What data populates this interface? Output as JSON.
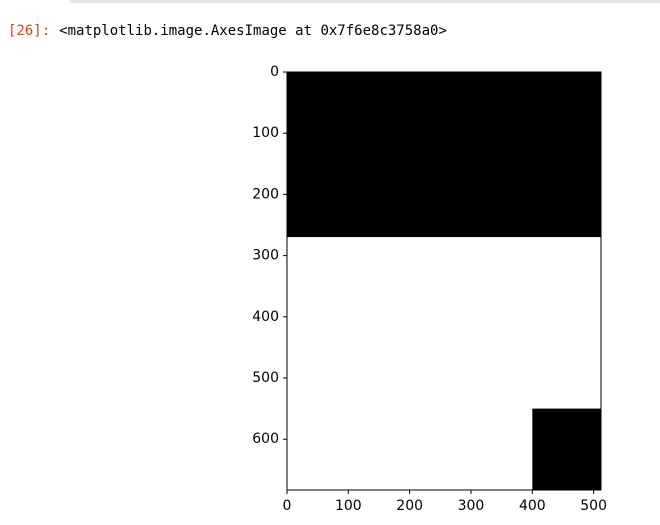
{
  "cell": {
    "prompt": "[26]:",
    "output_text": "<matplotlib.image.AxesImage at 0x7f6e8c3758a0>"
  },
  "colors": {
    "prompt": "#d84315",
    "image_fill": "#000000",
    "background": "#ffffff"
  },
  "chart_data": {
    "type": "heatmap",
    "title": "",
    "xlabel": "",
    "ylabel": "",
    "xlim": [
      0,
      512
    ],
    "ylim": [
      683,
      0
    ],
    "x_ticks": [
      0,
      100,
      200,
      300,
      400,
      500
    ],
    "y_ticks": [
      0,
      100,
      200,
      300,
      400,
      500,
      600
    ],
    "grid": false,
    "regions": [
      {
        "value": "black",
        "x": [
          0,
          512
        ],
        "y": [
          0,
          270
        ]
      },
      {
        "value": "white",
        "x": [
          0,
          512
        ],
        "y": [
          270,
          683
        ]
      },
      {
        "value": "black",
        "x": [
          400,
          512
        ],
        "y": [
          550,
          683
        ]
      }
    ]
  }
}
